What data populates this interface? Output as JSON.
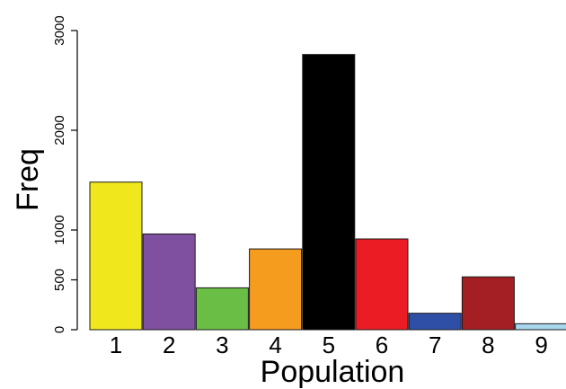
{
  "chart_data": {
    "type": "bar",
    "categories": [
      "1",
      "2",
      "3",
      "4",
      "5",
      "6",
      "7",
      "8",
      "9"
    ],
    "values": [
      1480,
      960,
      420,
      810,
      2760,
      910,
      165,
      530,
      60
    ],
    "colors": [
      "#F0E81C",
      "#7F4FA0",
      "#6ABD45",
      "#F59B1E",
      "#000000",
      "#EC1C24",
      "#2E4FA5",
      "#A31F24",
      "#A7D7EC"
    ],
    "xlabel": "Population",
    "ylabel": "Freq",
    "ylim": [
      0,
      3000
    ],
    "yticks": [
      "0",
      "500",
      "1000",
      "2000",
      "3000"
    ],
    "grid": false,
    "legend": "none"
  }
}
